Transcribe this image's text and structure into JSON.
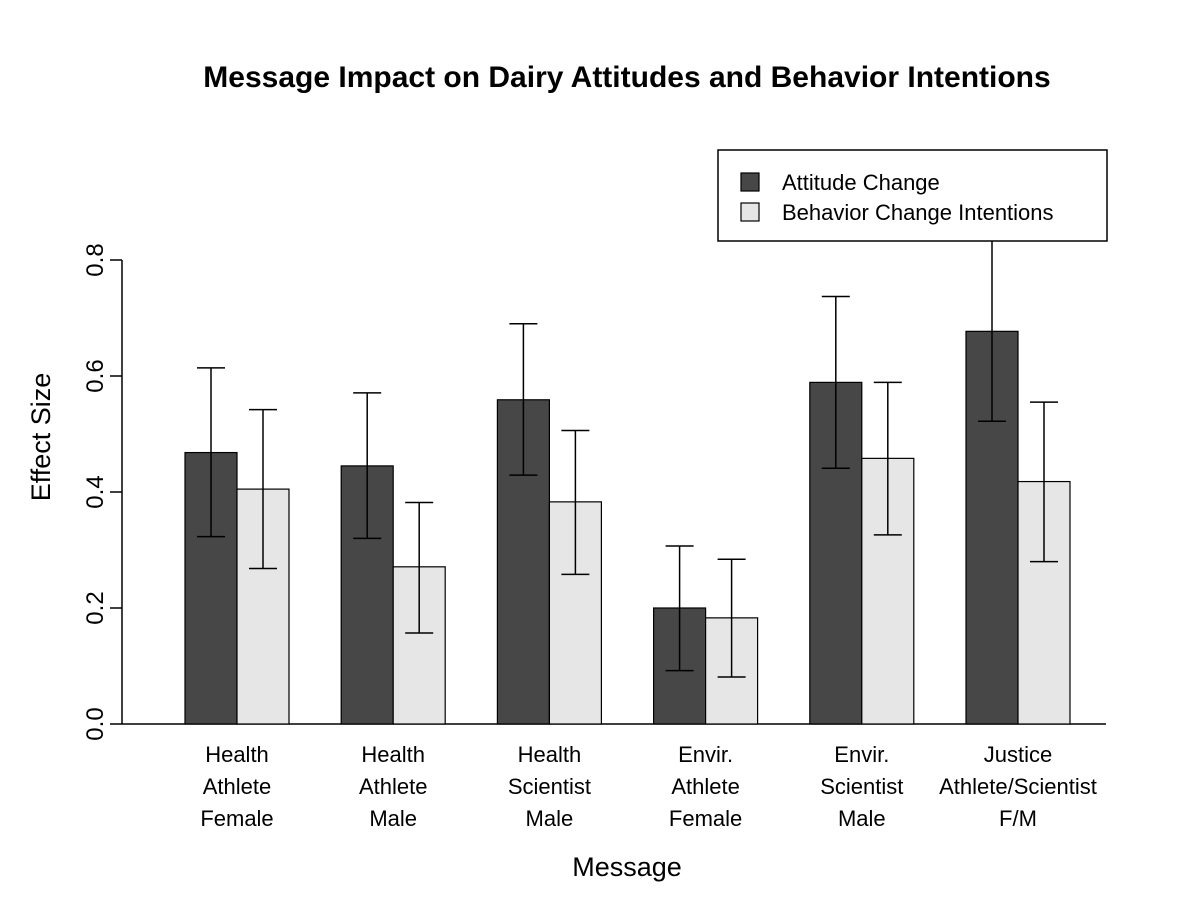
{
  "chart_data": {
    "type": "bar",
    "title": "Message Impact on Dairy Attitudes and Behavior Intentions",
    "xlabel": "Message",
    "ylabel": "Effect Size",
    "ylim": [
      0,
      0.8
    ],
    "yticks": [
      "0.0",
      "0.2",
      "0.4",
      "0.6",
      "0.8"
    ],
    "ytick_values": [
      0,
      0.2,
      0.4,
      0.6,
      0.8
    ],
    "categories": [
      [
        "Health",
        "Athlete",
        "Female"
      ],
      [
        "Health",
        "Athlete",
        "Male"
      ],
      [
        "Health",
        "Scientist",
        "Male"
      ],
      [
        "Envir.",
        "Athlete",
        "Female"
      ],
      [
        "Envir.",
        "Scientist",
        "Male"
      ],
      [
        "Justice",
        "Athlete/Scientist",
        "F/M"
      ]
    ],
    "series": [
      {
        "name": "Attitude Change",
        "color": "#474747",
        "values": [
          0.468,
          0.445,
          0.559,
          0.2,
          0.589,
          0.677
        ],
        "err_low": [
          0.323,
          0.32,
          0.429,
          0.092,
          0.441,
          0.522
        ],
        "err_high": [
          0.614,
          0.571,
          0.69,
          0.307,
          0.737,
          0.836
        ]
      },
      {
        "name": "Behavior Change Intentions",
        "color": "#e6e6e6",
        "values": [
          0.405,
          0.271,
          0.383,
          0.183,
          0.458,
          0.418
        ],
        "err_low": [
          0.268,
          0.157,
          0.258,
          0.081,
          0.326,
          0.28
        ],
        "err_high": [
          0.542,
          0.382,
          0.506,
          0.284,
          0.589,
          0.555
        ]
      }
    ],
    "legend": {
      "position": "top-right",
      "entries": [
        "Attitude Change",
        "Behavior Change Intentions"
      ]
    }
  }
}
